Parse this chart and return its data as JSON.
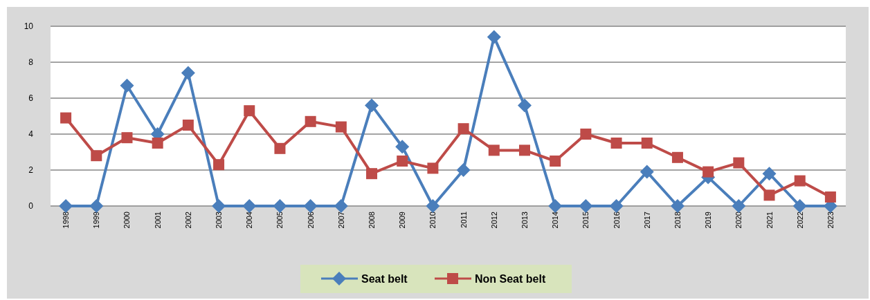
{
  "chart_data": {
    "type": "line",
    "categories": [
      "1998",
      "1999",
      "2000",
      "2001",
      "2002",
      "2003",
      "2004",
      "2005",
      "2006",
      "2007",
      "2008",
      "2009",
      "2010",
      "2011",
      "2012",
      "2013",
      "2014",
      "2015",
      "2016",
      "2017",
      "2018",
      "2019",
      "2020",
      "2021",
      "2022",
      "2023"
    ],
    "series": [
      {
        "name": "Seat belt",
        "color": "#4a7ebb",
        "marker": "diamond",
        "values": [
          0,
          0,
          6.7,
          4.0,
          7.4,
          0,
          0,
          0,
          0,
          0,
          5.6,
          3.3,
          0,
          2.0,
          9.4,
          5.6,
          0,
          0,
          0,
          1.9,
          0,
          1.6,
          0,
          1.8,
          0,
          0
        ]
      },
      {
        "name": "Non Seat belt",
        "color": "#be4b48",
        "marker": "square",
        "values": [
          4.9,
          2.8,
          3.8,
          3.5,
          4.5,
          2.3,
          5.3,
          3.2,
          4.7,
          4.4,
          1.8,
          2.5,
          2.1,
          4.3,
          3.1,
          3.1,
          2.5,
          4.0,
          3.5,
          3.5,
          2.7,
          1.9,
          2.4,
          0.6,
          1.4,
          0.5
        ]
      }
    ],
    "ylim": [
      0,
      10
    ],
    "yticks": [
      0,
      2,
      4,
      6,
      8,
      10
    ],
    "grid": "y",
    "legend": "bottom"
  }
}
